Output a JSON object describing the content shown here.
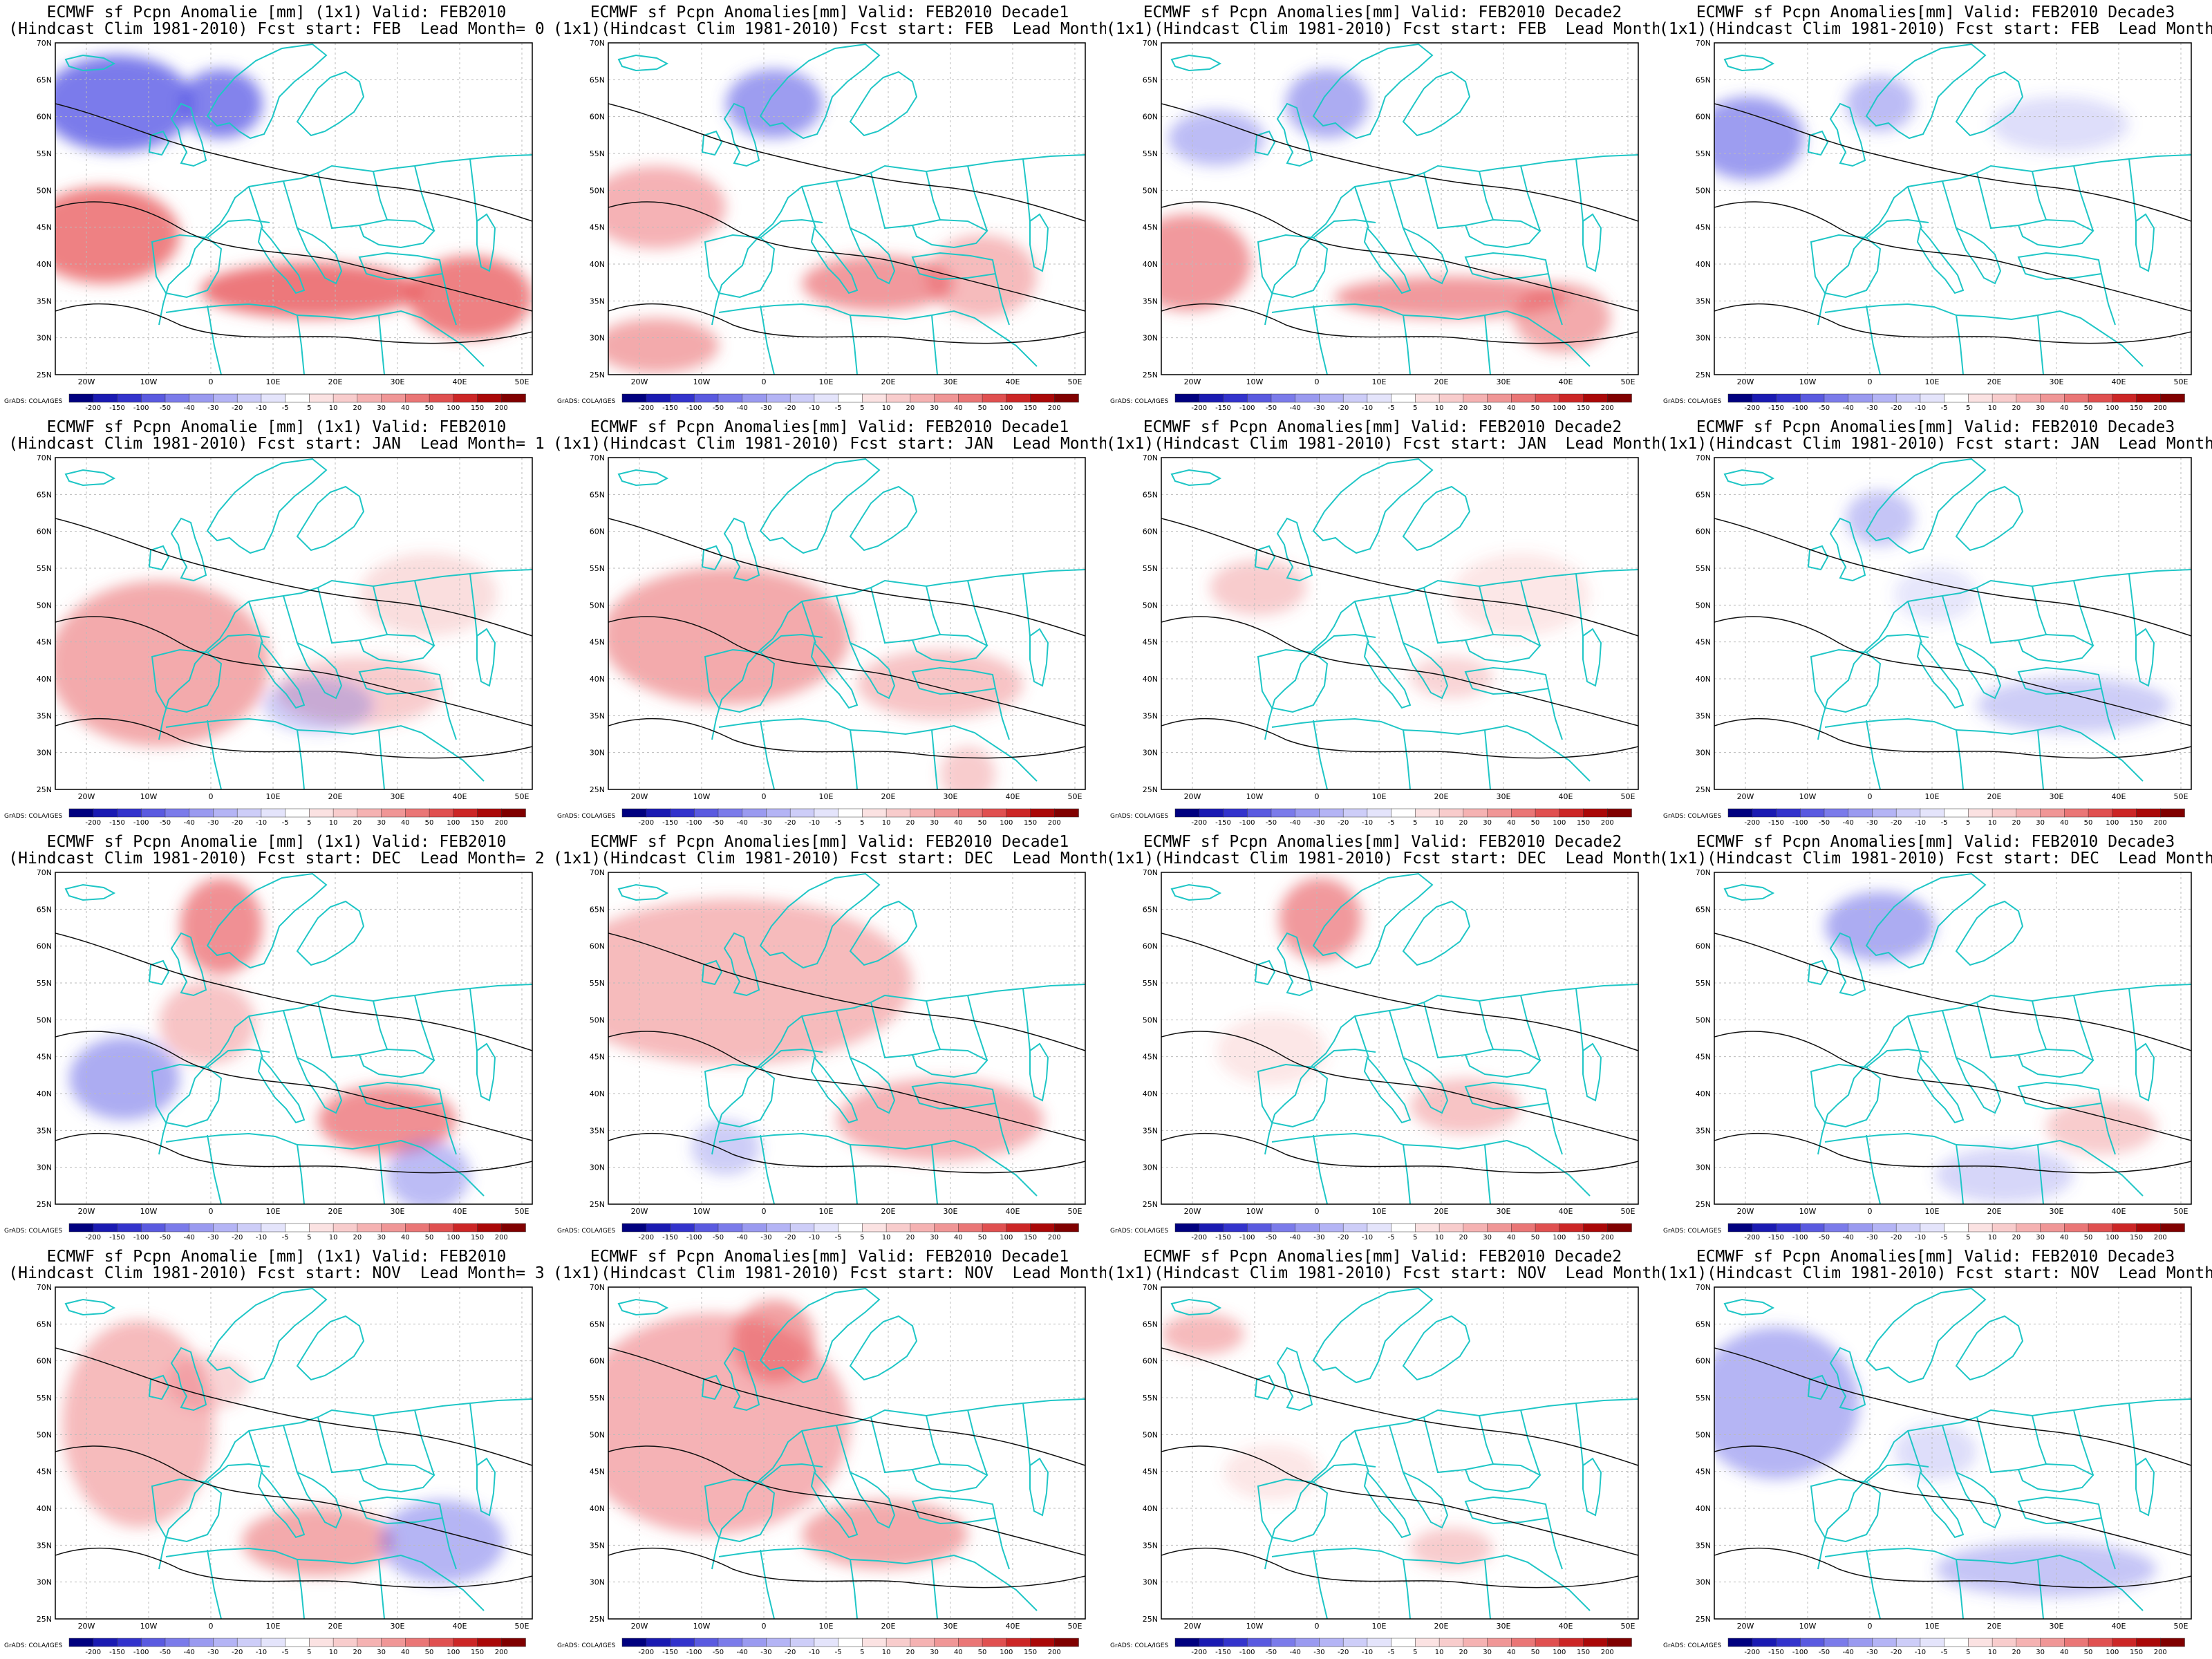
{
  "figure": {
    "rows": [
      {
        "lead_month": "0",
        "fcst_start": "FEB"
      },
      {
        "lead_month": "1",
        "fcst_start": "JAN"
      },
      {
        "lead_month": "2",
        "fcst_start": "DEC"
      },
      {
        "lead_month": "3",
        "fcst_start": "NOV"
      }
    ],
    "columns": [
      {
        "title1": "ECMWF sf Pcpn Anomalie [mm] (1x1) Valid: FEB2010",
        "title2_prefix": "(Hindcast Clim 1981-2010) Fcst start: "
      },
      {
        "title1": "ECMWF sf Pcpn Anomalies[mm] Valid: FEB2010 Decade1",
        "title2_prefix": "(1x1)(Hindcast Clim 1981-2010) Fcst start: "
      },
      {
        "title1": "ECMWF sf Pcpn Anomalies[mm] Valid: FEB2010 Decade2",
        "title2_prefix": "(1x1)(Hindcast Clim 1981-2010) Fcst start: "
      },
      {
        "title1": "ECMWF sf Pcpn Anomalies[mm] Valid: FEB2010 Decade3",
        "title2_prefix": "(1x1)(Hindcast Clim 1981-2010) Fcst start: "
      }
    ],
    "lead_label": "Lead Month= ",
    "lat_labels": [
      "70N",
      "65N",
      "60N",
      "55N",
      "50N",
      "45N",
      "40N",
      "35N",
      "30N",
      "25N"
    ],
    "lon_labels": [
      "20W",
      "10W",
      "0",
      "10E",
      "20E",
      "30E",
      "40E",
      "50E"
    ],
    "colorbar": {
      "labels": [
        "-200",
        "-150",
        "-100",
        "-50",
        "-40",
        "-30",
        "-20",
        "-10",
        "-5",
        "5",
        "10",
        "20",
        "30",
        "40",
        "50",
        "100",
        "150",
        "200"
      ],
      "colors": [
        "#00007f",
        "#1a1ab2",
        "#3333cc",
        "#5a5ae0",
        "#7b7bea",
        "#9a9af0",
        "#b4b4f5",
        "#cdcdf8",
        "#e4e4fb",
        "#ffffff",
        "#fbe2e2",
        "#f8cccc",
        "#f5b2b2",
        "#f09696",
        "#ea7676",
        "#e05050",
        "#cc2626",
        "#aa0808",
        "#800000"
      ]
    },
    "credit": "GrADS: COLA/IGES",
    "anomaly_colors": {
      "wet": "#e8555a",
      "dry": "#5a5ae6",
      "coast": "#1fc6c6"
    }
  }
}
